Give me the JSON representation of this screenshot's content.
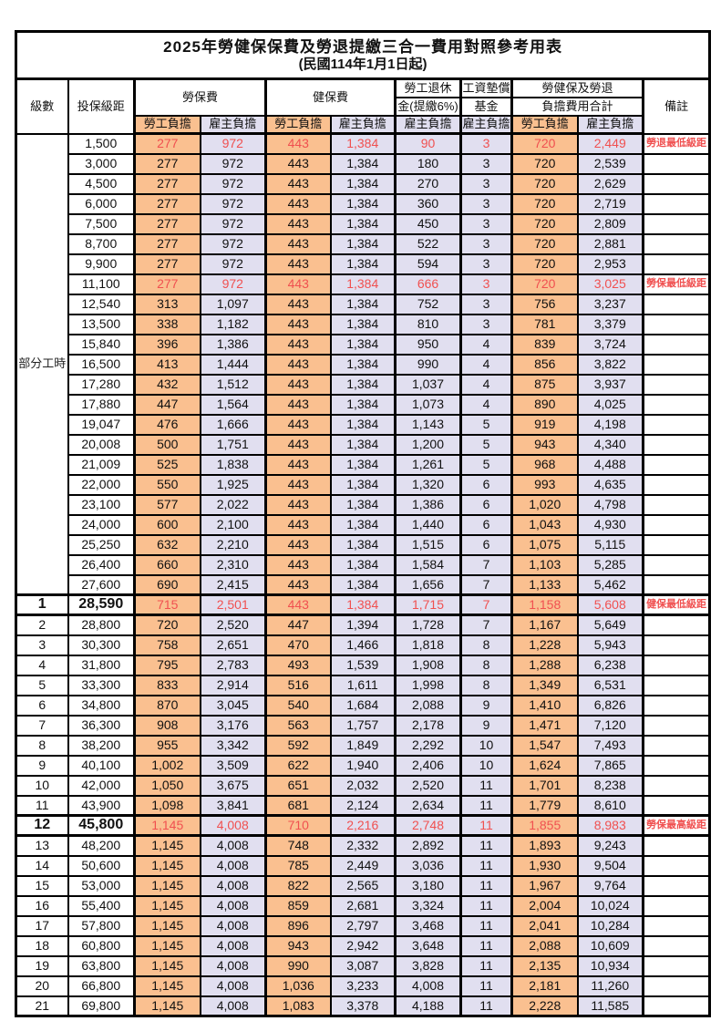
{
  "title": {
    "line1": "2025年勞健保保費及勞退提繳三合一費用對照參考用表",
    "line2": "(民國114年1月1日起)"
  },
  "header": {
    "level": "級數",
    "bracket": "投保級距",
    "labor": "勞保費",
    "health": "健保費",
    "pension_top": "勞工退休",
    "pension_bottom": "金(提繳6%)",
    "wage_fund_top": "工資墊償",
    "wage_fund_bottom": "基金",
    "total_top": "勞健保及勞退",
    "total_bottom": "負擔費用合計",
    "note": "備註",
    "employee": "勞工負擔",
    "employer": "雇主負擔"
  },
  "part_time": {
    "label": "部分工時",
    "rows": 23
  },
  "colors": {
    "employee_bg": "#FAC090",
    "employer_bg": "#E1DFF0",
    "highlight_red": "#F05050",
    "border": "#000000"
  },
  "rows": [
    {
      "lv": "",
      "br": "1,500",
      "v": [
        "277",
        "972",
        "443",
        "1,384",
        "90",
        "3",
        "720",
        "2,449"
      ],
      "n": "勞退最低級距",
      "red": true
    },
    {
      "lv": "",
      "br": "3,000",
      "v": [
        "277",
        "972",
        "443",
        "1,384",
        "180",
        "3",
        "720",
        "2,539"
      ]
    },
    {
      "lv": "",
      "br": "4,500",
      "v": [
        "277",
        "972",
        "443",
        "1,384",
        "270",
        "3",
        "720",
        "2,629"
      ]
    },
    {
      "lv": "",
      "br": "6,000",
      "v": [
        "277",
        "972",
        "443",
        "1,384",
        "360",
        "3",
        "720",
        "2,719"
      ]
    },
    {
      "lv": "",
      "br": "7,500",
      "v": [
        "277",
        "972",
        "443",
        "1,384",
        "450",
        "3",
        "720",
        "2,809"
      ]
    },
    {
      "lv": "",
      "br": "8,700",
      "v": [
        "277",
        "972",
        "443",
        "1,384",
        "522",
        "3",
        "720",
        "2,881"
      ]
    },
    {
      "lv": "",
      "br": "9,900",
      "v": [
        "277",
        "972",
        "443",
        "1,384",
        "594",
        "3",
        "720",
        "2,953"
      ]
    },
    {
      "lv": "",
      "br": "11,100",
      "v": [
        "277",
        "972",
        "443",
        "1,384",
        "666",
        "3",
        "720",
        "3,025"
      ],
      "n": "勞保最低級距",
      "red": true
    },
    {
      "lv": "",
      "br": "12,540",
      "v": [
        "313",
        "1,097",
        "443",
        "1,384",
        "752",
        "3",
        "756",
        "3,237"
      ]
    },
    {
      "lv": "",
      "br": "13,500",
      "v": [
        "338",
        "1,182",
        "443",
        "1,384",
        "810",
        "3",
        "781",
        "3,379"
      ]
    },
    {
      "lv": "",
      "br": "15,840",
      "v": [
        "396",
        "1,386",
        "443",
        "1,384",
        "950",
        "4",
        "839",
        "3,724"
      ]
    },
    {
      "lv": "",
      "br": "16,500",
      "v": [
        "413",
        "1,444",
        "443",
        "1,384",
        "990",
        "4",
        "856",
        "3,822"
      ]
    },
    {
      "lv": "",
      "br": "17,280",
      "v": [
        "432",
        "1,512",
        "443",
        "1,384",
        "1,037",
        "4",
        "875",
        "3,937"
      ]
    },
    {
      "lv": "",
      "br": "17,880",
      "v": [
        "447",
        "1,564",
        "443",
        "1,384",
        "1,073",
        "4",
        "890",
        "4,025"
      ]
    },
    {
      "lv": "",
      "br": "19,047",
      "v": [
        "476",
        "1,666",
        "443",
        "1,384",
        "1,143",
        "5",
        "919",
        "4,198"
      ]
    },
    {
      "lv": "",
      "br": "20,008",
      "v": [
        "500",
        "1,751",
        "443",
        "1,384",
        "1,200",
        "5",
        "943",
        "4,340"
      ]
    },
    {
      "lv": "",
      "br": "21,009",
      "v": [
        "525",
        "1,838",
        "443",
        "1,384",
        "1,261",
        "5",
        "968",
        "4,488"
      ]
    },
    {
      "lv": "",
      "br": "22,000",
      "v": [
        "550",
        "1,925",
        "443",
        "1,384",
        "1,320",
        "6",
        "993",
        "4,635"
      ]
    },
    {
      "lv": "",
      "br": "23,100",
      "v": [
        "577",
        "2,022",
        "443",
        "1,384",
        "1,386",
        "6",
        "1,020",
        "4,798"
      ]
    },
    {
      "lv": "",
      "br": "24,000",
      "v": [
        "600",
        "2,100",
        "443",
        "1,384",
        "1,440",
        "6",
        "1,043",
        "4,930"
      ]
    },
    {
      "lv": "",
      "br": "25,250",
      "v": [
        "632",
        "2,210",
        "443",
        "1,384",
        "1,515",
        "6",
        "1,075",
        "5,115"
      ]
    },
    {
      "lv": "",
      "br": "26,400",
      "v": [
        "660",
        "2,310",
        "443",
        "1,384",
        "1,584",
        "7",
        "1,103",
        "5,285"
      ]
    },
    {
      "lv": "",
      "br": "27,600",
      "v": [
        "690",
        "2,415",
        "443",
        "1,384",
        "1,656",
        "7",
        "1,133",
        "5,462"
      ]
    },
    {
      "lv": "1",
      "br": "28,590",
      "v": [
        "715",
        "2,501",
        "443",
        "1,384",
        "1,715",
        "7",
        "1,158",
        "5,608"
      ],
      "n": "健保最低級距",
      "red": true,
      "hl": true
    },
    {
      "lv": "2",
      "br": "28,800",
      "v": [
        "720",
        "2,520",
        "447",
        "1,394",
        "1,728",
        "7",
        "1,167",
        "5,649"
      ]
    },
    {
      "lv": "3",
      "br": "30,300",
      "v": [
        "758",
        "2,651",
        "470",
        "1,466",
        "1,818",
        "8",
        "1,228",
        "5,943"
      ]
    },
    {
      "lv": "4",
      "br": "31,800",
      "v": [
        "795",
        "2,783",
        "493",
        "1,539",
        "1,908",
        "8",
        "1,288",
        "6,238"
      ]
    },
    {
      "lv": "5",
      "br": "33,300",
      "v": [
        "833",
        "2,914",
        "516",
        "1,611",
        "1,998",
        "8",
        "1,349",
        "6,531"
      ]
    },
    {
      "lv": "6",
      "br": "34,800",
      "v": [
        "870",
        "3,045",
        "540",
        "1,684",
        "2,088",
        "9",
        "1,410",
        "6,826"
      ]
    },
    {
      "lv": "7",
      "br": "36,300",
      "v": [
        "908",
        "3,176",
        "563",
        "1,757",
        "2,178",
        "9",
        "1,471",
        "7,120"
      ]
    },
    {
      "lv": "8",
      "br": "38,200",
      "v": [
        "955",
        "3,342",
        "592",
        "1,849",
        "2,292",
        "10",
        "1,547",
        "7,493"
      ]
    },
    {
      "lv": "9",
      "br": "40,100",
      "v": [
        "1,002",
        "3,509",
        "622",
        "1,940",
        "2,406",
        "10",
        "1,624",
        "7,865"
      ]
    },
    {
      "lv": "10",
      "br": "42,000",
      "v": [
        "1,050",
        "3,675",
        "651",
        "2,032",
        "2,520",
        "11",
        "1,701",
        "8,238"
      ]
    },
    {
      "lv": "11",
      "br": "43,900",
      "v": [
        "1,098",
        "3,841",
        "681",
        "2,124",
        "2,634",
        "11",
        "1,779",
        "8,610"
      ]
    },
    {
      "lv": "12",
      "br": "45,800",
      "v": [
        "1,145",
        "4,008",
        "710",
        "2,216",
        "2,748",
        "11",
        "1,855",
        "8,983"
      ],
      "n": "勞保最高級距",
      "red": true,
      "hl": true
    },
    {
      "lv": "13",
      "br": "48,200",
      "v": [
        "1,145",
        "4,008",
        "748",
        "2,332",
        "2,892",
        "11",
        "1,893",
        "9,243"
      ]
    },
    {
      "lv": "14",
      "br": "50,600",
      "v": [
        "1,145",
        "4,008",
        "785",
        "2,449",
        "3,036",
        "11",
        "1,930",
        "9,504"
      ]
    },
    {
      "lv": "15",
      "br": "53,000",
      "v": [
        "1,145",
        "4,008",
        "822",
        "2,565",
        "3,180",
        "11",
        "1,967",
        "9,764"
      ]
    },
    {
      "lv": "16",
      "br": "55,400",
      "v": [
        "1,145",
        "4,008",
        "859",
        "2,681",
        "3,324",
        "11",
        "2,004",
        "10,024"
      ]
    },
    {
      "lv": "17",
      "br": "57,800",
      "v": [
        "1,145",
        "4,008",
        "896",
        "2,797",
        "3,468",
        "11",
        "2,041",
        "10,284"
      ]
    },
    {
      "lv": "18",
      "br": "60,800",
      "v": [
        "1,145",
        "4,008",
        "943",
        "2,942",
        "3,648",
        "11",
        "2,088",
        "10,609"
      ]
    },
    {
      "lv": "19",
      "br": "63,800",
      "v": [
        "1,145",
        "4,008",
        "990",
        "3,087",
        "3,828",
        "11",
        "2,135",
        "10,934"
      ]
    },
    {
      "lv": "20",
      "br": "66,800",
      "v": [
        "1,145",
        "4,008",
        "1,036",
        "3,233",
        "4,008",
        "11",
        "2,181",
        "11,260"
      ]
    },
    {
      "lv": "21",
      "br": "69,800",
      "v": [
        "1,145",
        "4,008",
        "1,083",
        "3,378",
        "4,188",
        "11",
        "2,228",
        "11,585"
      ]
    }
  ]
}
